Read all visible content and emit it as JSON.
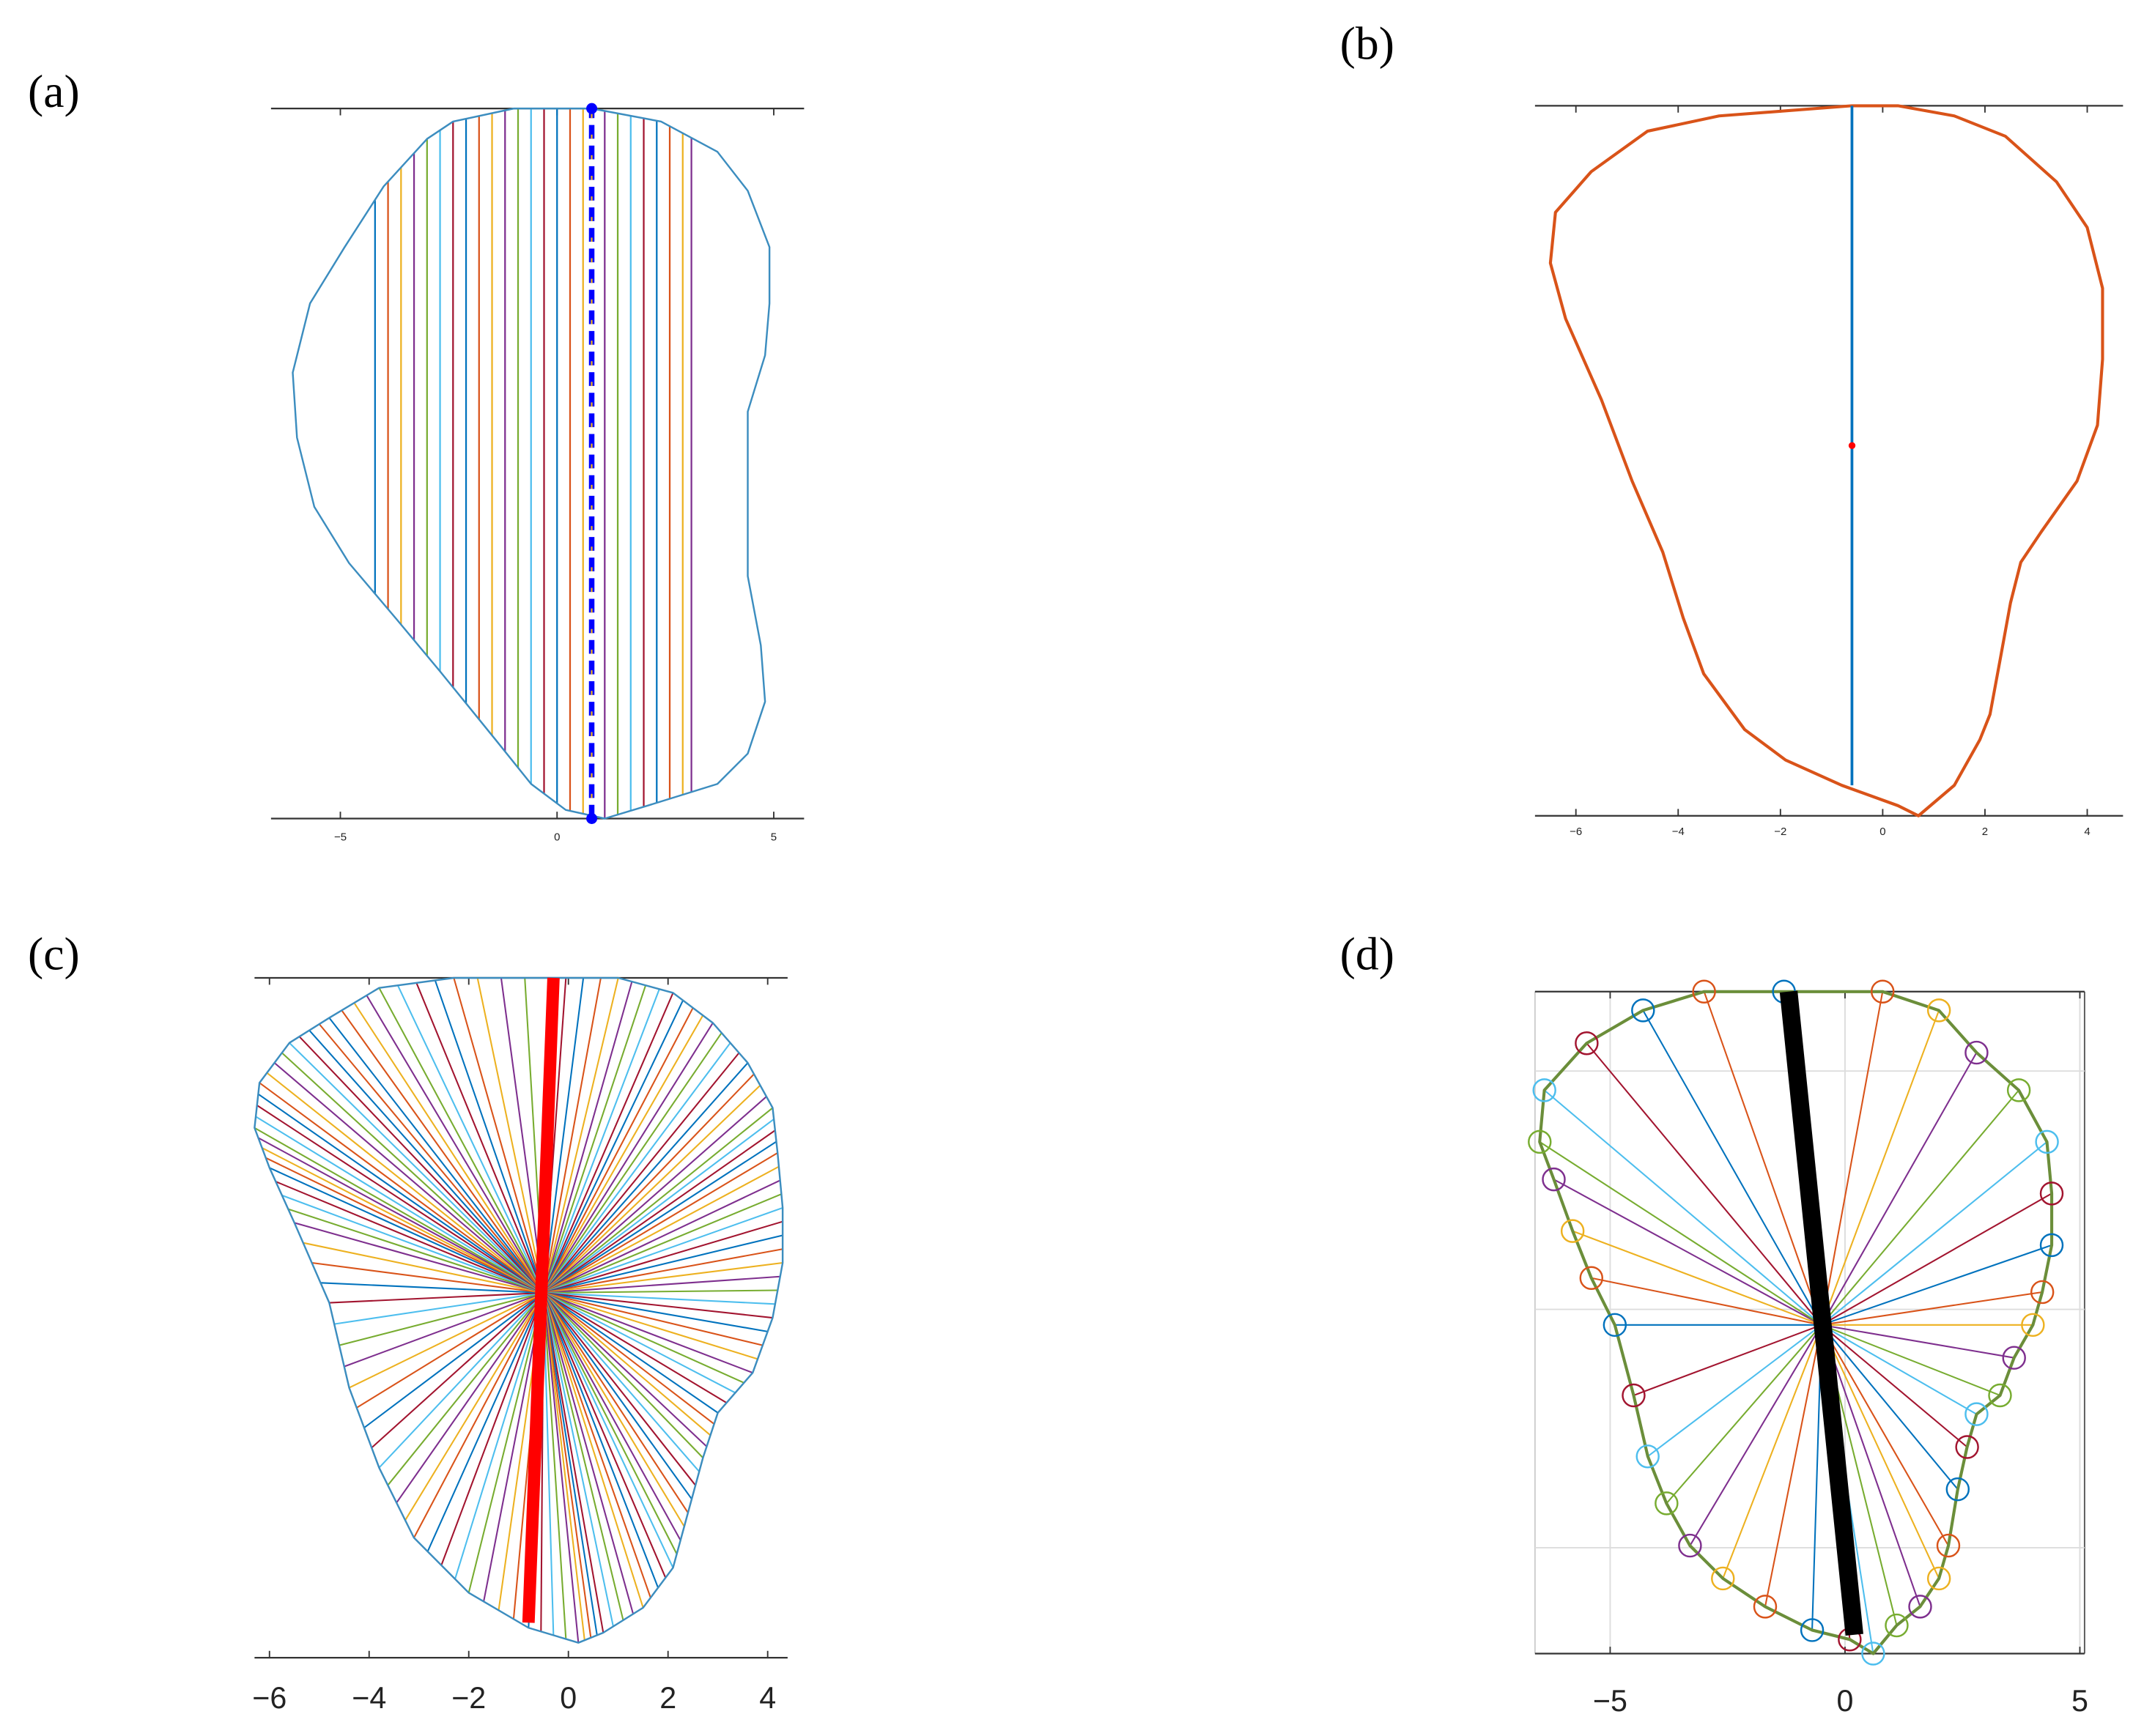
{
  "chart_data": [
    {
      "type": "line",
      "panel": "(a)",
      "xlim": [
        -6.6,
        5.7
      ],
      "ylim": [
        0,
        16.4
      ],
      "xticks": [
        {
          "value": -5,
          "label": "−5"
        },
        0,
        5
      ],
      "series": [
        {
          "style": "closed",
          "color": "#3c8dbf",
          "width": 1.3,
          "x": [
            -2.4,
            -1.0,
            0.8,
            2.4,
            3.7,
            4.4,
            4.9,
            4.9,
            4.8,
            4.4,
            4.4,
            4.4,
            4.7,
            4.8,
            4.4,
            3.7,
            2.1,
            1.1,
            0.2,
            -0.6,
            -1.4,
            -2.7,
            -3.7,
            -4.8,
            -5.6,
            -6.0,
            -6.1,
            -5.7,
            -4.9,
            -4.0,
            -3.0
          ],
          "values": [
            16.1,
            16.4,
            16.4,
            16.1,
            15.4,
            14.5,
            13.2,
            11.9,
            10.7,
            9.4,
            7.5,
            5.6,
            4.0,
            2.7,
            1.5,
            0.8,
            0.3,
            0.0,
            0.2,
            0.8,
            1.8,
            3.4,
            4.6,
            5.9,
            7.2,
            8.8,
            10.3,
            11.9,
            13.2,
            14.6,
            15.7
          ]
        },
        {
          "style": "dashed",
          "color": "#0000ff",
          "width": 4,
          "x": [
            0.8,
            0.8
          ],
          "values": [
            0,
            16.4
          ]
        },
        {
          "style": "point",
          "color": "#0000ff",
          "width": 4,
          "x": [
            0.8,
            0.8
          ],
          "values": [
            0,
            16.4
          ]
        }
      ],
      "chords": [
        -4.2,
        -3.9,
        -3.6,
        -3.3,
        -3.0,
        -2.7,
        -2.4,
        -2.1,
        -1.8,
        -1.5,
        -1.2,
        -0.9,
        -0.6,
        -0.3,
        0.0,
        0.3,
        0.6,
        1.1,
        1.4,
        1.7,
        2.0,
        2.3,
        2.6,
        2.9,
        3.1
      ]
    },
    {
      "type": "line",
      "panel": "(b)",
      "xlim": [
        -6.8,
        4.7
      ],
      "ylim": [
        0,
        14.0
      ],
      "xticks": [
        {
          "value": -6,
          "label": "−6"
        },
        {
          "value": -4,
          "label": "−4"
        },
        {
          "value": -2,
          "label": "−2"
        },
        0,
        2,
        4
      ],
      "series": [
        {
          "style": "closed",
          "color": "#D95319",
          "width": 2.2,
          "x": [
            -0.6,
            0.3,
            1.4,
            2.4,
            3.4,
            4.0,
            4.3,
            4.3,
            4.2,
            3.8,
            3.1,
            2.7,
            2.5,
            2.3,
            2.1,
            1.9,
            1.4,
            0.7,
            0.3,
            -0.8,
            -1.9,
            -2.7,
            -3.5,
            -3.9,
            -4.3,
            -4.9,
            -5.5,
            -6.2,
            -6.5,
            -6.4,
            -5.7,
            -4.6,
            -3.2,
            -1.9
          ],
          "values": [
            14.0,
            14.0,
            13.8,
            13.4,
            12.5,
            11.6,
            10.4,
            9.0,
            7.7,
            6.6,
            5.6,
            5.0,
            4.2,
            3.1,
            2.0,
            1.5,
            0.6,
            0.0,
            0.2,
            0.6,
            1.1,
            1.7,
            2.8,
            3.9,
            5.2,
            6.6,
            8.2,
            9.8,
            10.9,
            11.9,
            12.7,
            13.5,
            13.8,
            13.9
          ]
        },
        {
          "style": "line",
          "color": "#0072BD",
          "width": 2,
          "x": [
            -0.6,
            -0.6
          ],
          "values": [
            0.6,
            14.0
          ]
        },
        {
          "style": "point",
          "color": "#ff0000",
          "width": 2.5,
          "x": [
            -0.6
          ],
          "values": [
            7.3
          ]
        }
      ]
    },
    {
      "type": "line",
      "panel": "(c)",
      "xlim": [
        -6.3,
        4.4
      ],
      "ylim": [
        0,
        13.6
      ],
      "xticks": [
        {
          "value": -6,
          "label": "−6"
        },
        {
          "value": -4,
          "label": "−4"
        },
        {
          "value": -2,
          "label": "−2"
        },
        0,
        2,
        4
      ],
      "center": {
        "x": -0.5,
        "y": 7.3
      },
      "series": [
        {
          "style": "closed",
          "color": "#3c8dbf",
          "width": 1.3,
          "x": [
            -4.8,
            -3.8,
            -2.3,
            -0.4,
            1.0,
            2.1,
            2.9,
            3.6,
            4.1,
            4.2,
            4.3,
            4.3,
            4.1,
            3.7,
            3.0,
            2.7,
            2.4,
            2.1,
            1.5,
            0.7,
            0.2,
            -0.8,
            -2.0,
            -3.1,
            -3.8,
            -4.4,
            -4.8,
            -5.5,
            -6.0,
            -6.3,
            -6.2,
            -5.6
          ],
          "values": [
            12.8,
            13.4,
            13.6,
            13.6,
            13.6,
            13.3,
            12.7,
            11.9,
            11.0,
            10.1,
            9.0,
            7.9,
            6.8,
            5.7,
            4.9,
            4.0,
            2.9,
            1.8,
            1.0,
            0.5,
            0.3,
            0.6,
            1.3,
            2.4,
            3.8,
            5.4,
            7.1,
            8.7,
            9.8,
            10.6,
            11.5,
            12.3
          ]
        },
        {
          "style": "line",
          "color": "#ff0000",
          "width": 9,
          "x": [
            -0.3,
            -0.8
          ],
          "values": [
            13.6,
            0.7
          ]
        }
      ]
    },
    {
      "type": "line",
      "panel": "(d)",
      "xlim": [
        -6.6,
        5.1
      ],
      "ylim": [
        0,
        14.1
      ],
      "xticks": [
        {
          "value": -5,
          "label": "−5"
        },
        0,
        5
      ],
      "grid": true,
      "frame": true,
      "center": {
        "x": -0.5,
        "y": 7.0
      },
      "series": [
        {
          "style": "closed",
          "color": "#6b8e3a",
          "width": 2.2,
          "markers": true,
          "x": [
            -1.3,
            0.8,
            2.0,
            2.8,
            3.7,
            4.3,
            4.4,
            4.4,
            4.2,
            4.0,
            3.6,
            3.3,
            2.8,
            2.6,
            2.4,
            2.2,
            2.0,
            1.6,
            1.1,
            0.6,
            0.1,
            -0.7,
            -1.7,
            -2.6,
            -3.3,
            -3.8,
            -4.2,
            -4.5,
            -4.9,
            -5.4,
            -5.8,
            -6.2,
            -6.5,
            -6.4,
            -5.5,
            -4.3,
            -3.0
          ],
          "values": [
            14.1,
            14.1,
            13.7,
            12.8,
            12.0,
            10.9,
            9.8,
            8.7,
            7.7,
            7.0,
            6.3,
            5.5,
            5.1,
            4.4,
            3.5,
            2.3,
            1.6,
            1.0,
            0.6,
            0.0,
            0.3,
            0.5,
            1.0,
            1.6,
            2.3,
            3.2,
            4.2,
            5.5,
            7.0,
            8.0,
            9.0,
            10.1,
            10.9,
            12.0,
            13.0,
            13.7,
            14.1
          ]
        },
        {
          "style": "line",
          "color": "#000000",
          "width": 13,
          "x": [
            -1.2,
            0.2
          ],
          "values": [
            14.1,
            0.4
          ]
        }
      ]
    }
  ],
  "palette": [
    "#0072BD",
    "#D95319",
    "#EDB120",
    "#7E2F8E",
    "#77AC30",
    "#4DBEEE",
    "#A2142F"
  ]
}
